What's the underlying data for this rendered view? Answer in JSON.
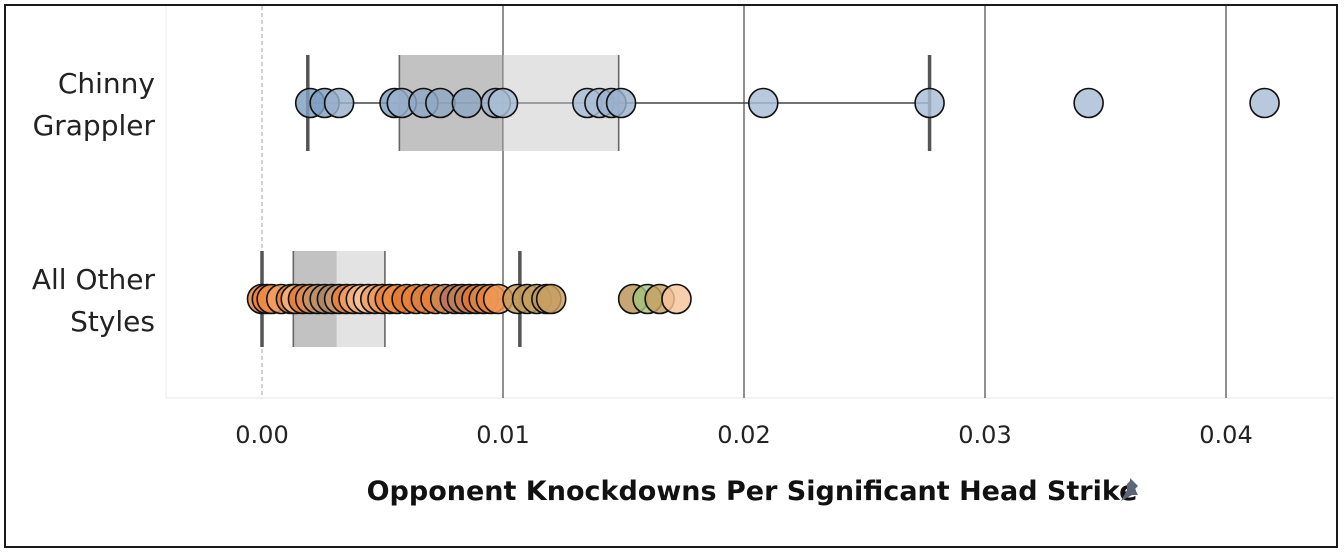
{
  "chart_data": {
    "type": "box-and-whisker with jittered dot strip",
    "title": "",
    "xlabel": "Opponent Knockdowns Per Significant Head Strike",
    "ylabel": "",
    "xlim": [
      -0.004,
      0.0445
    ],
    "xticks": [
      0.0,
      0.01,
      0.02,
      0.03,
      0.04
    ],
    "xtick_labels": [
      "0.00",
      "0.01",
      "0.02",
      "0.03",
      "0.04"
    ],
    "grid": true,
    "axis_title_icon": "pin-icon",
    "categories": [
      {
        "label": [
          "Chinny",
          "Grappler"
        ],
        "whisker_low": 0.0019,
        "q1": 0.0057,
        "median": 0.01,
        "q3": 0.0148,
        "whisker_high": 0.0277,
        "points": [
          {
            "x": 0.002,
            "color": "#7f9ec0"
          },
          {
            "x": 0.0026,
            "color": "#7f9ec0"
          },
          {
            "x": 0.0032,
            "color": "#9ab1cc"
          },
          {
            "x": 0.0055,
            "color": "#7f9ec0"
          },
          {
            "x": 0.0058,
            "color": "#9ab1cc"
          },
          {
            "x": 0.0067,
            "color": "#8fa8c5"
          },
          {
            "x": 0.0074,
            "color": "#8fa8c5"
          },
          {
            "x": 0.0085,
            "color": "#8fa8c5"
          },
          {
            "x": 0.0097,
            "color": "#9ab1cc"
          },
          {
            "x": 0.01,
            "color": "#a9bdd5"
          },
          {
            "x": 0.0135,
            "color": "#a9bdd5"
          },
          {
            "x": 0.014,
            "color": "#a9bdd5"
          },
          {
            "x": 0.0145,
            "color": "#9ab1cc"
          },
          {
            "x": 0.0149,
            "color": "#9ab1cc"
          },
          {
            "x": 0.0208,
            "color": "#a9bdd5"
          },
          {
            "x": 0.0277,
            "color": "#a9bdd5"
          },
          {
            "x": 0.0343,
            "color": "#a9bdd5"
          },
          {
            "x": 0.0416,
            "color": "#a9bdd5"
          }
        ]
      },
      {
        "label": [
          "All Other",
          "Styles"
        ],
        "whisker_low": 0.0,
        "q1": 0.0013,
        "median": 0.0031,
        "q3": 0.0051,
        "whisker_high": 0.0107,
        "points": [
          {
            "x": 0.0,
            "color": "#e8803a"
          },
          {
            "x": 0.0002,
            "color": "#e8803a"
          },
          {
            "x": 0.0004,
            "color": "#ed8c47"
          },
          {
            "x": 0.0008,
            "color": "#f0a066"
          },
          {
            "x": 0.0012,
            "color": "#e8803a"
          },
          {
            "x": 0.0014,
            "color": "#f4b483"
          },
          {
            "x": 0.0017,
            "color": "#e0782f"
          },
          {
            "x": 0.002,
            "color": "#d98c5a"
          },
          {
            "x": 0.0023,
            "color": "#c69168"
          },
          {
            "x": 0.0026,
            "color": "#b89069"
          },
          {
            "x": 0.0029,
            "color": "#a88464"
          },
          {
            "x": 0.0032,
            "color": "#c99a70"
          },
          {
            "x": 0.0035,
            "color": "#e8803a"
          },
          {
            "x": 0.0038,
            "color": "#f0a066"
          },
          {
            "x": 0.0041,
            "color": "#f4b483"
          },
          {
            "x": 0.0044,
            "color": "#f7c49b"
          },
          {
            "x": 0.0047,
            "color": "#e8a06a"
          },
          {
            "x": 0.005,
            "color": "#ef9a55"
          },
          {
            "x": 0.0053,
            "color": "#e8803a"
          },
          {
            "x": 0.0056,
            "color": "#ed8c47"
          },
          {
            "x": 0.006,
            "color": "#e0782f"
          },
          {
            "x": 0.0064,
            "color": "#e8803a"
          },
          {
            "x": 0.0068,
            "color": "#d5803f"
          },
          {
            "x": 0.0072,
            "color": "#e8803a"
          },
          {
            "x": 0.0076,
            "color": "#c9884f"
          },
          {
            "x": 0.008,
            "color": "#bc6f5b"
          },
          {
            "x": 0.0083,
            "color": "#b98159"
          },
          {
            "x": 0.0086,
            "color": "#c97b4f"
          },
          {
            "x": 0.0089,
            "color": "#e0782f"
          },
          {
            "x": 0.0092,
            "color": "#d08a4a"
          },
          {
            "x": 0.0095,
            "color": "#e8803a"
          },
          {
            "x": 0.0098,
            "color": "#ef9a55"
          },
          {
            "x": 0.0106,
            "color": "#c79a5a"
          },
          {
            "x": 0.011,
            "color": "#bf9a57"
          },
          {
            "x": 0.0114,
            "color": "#c4a060"
          },
          {
            "x": 0.0118,
            "color": "#b99455"
          },
          {
            "x": 0.012,
            "color": "#c9a063"
          },
          {
            "x": 0.0154,
            "color": "#b99455"
          },
          {
            "x": 0.016,
            "color": "#a4c27a"
          },
          {
            "x": 0.0165,
            "color": "#c4a060"
          },
          {
            "x": 0.0172,
            "color": "#f7c49b"
          }
        ]
      }
    ]
  }
}
